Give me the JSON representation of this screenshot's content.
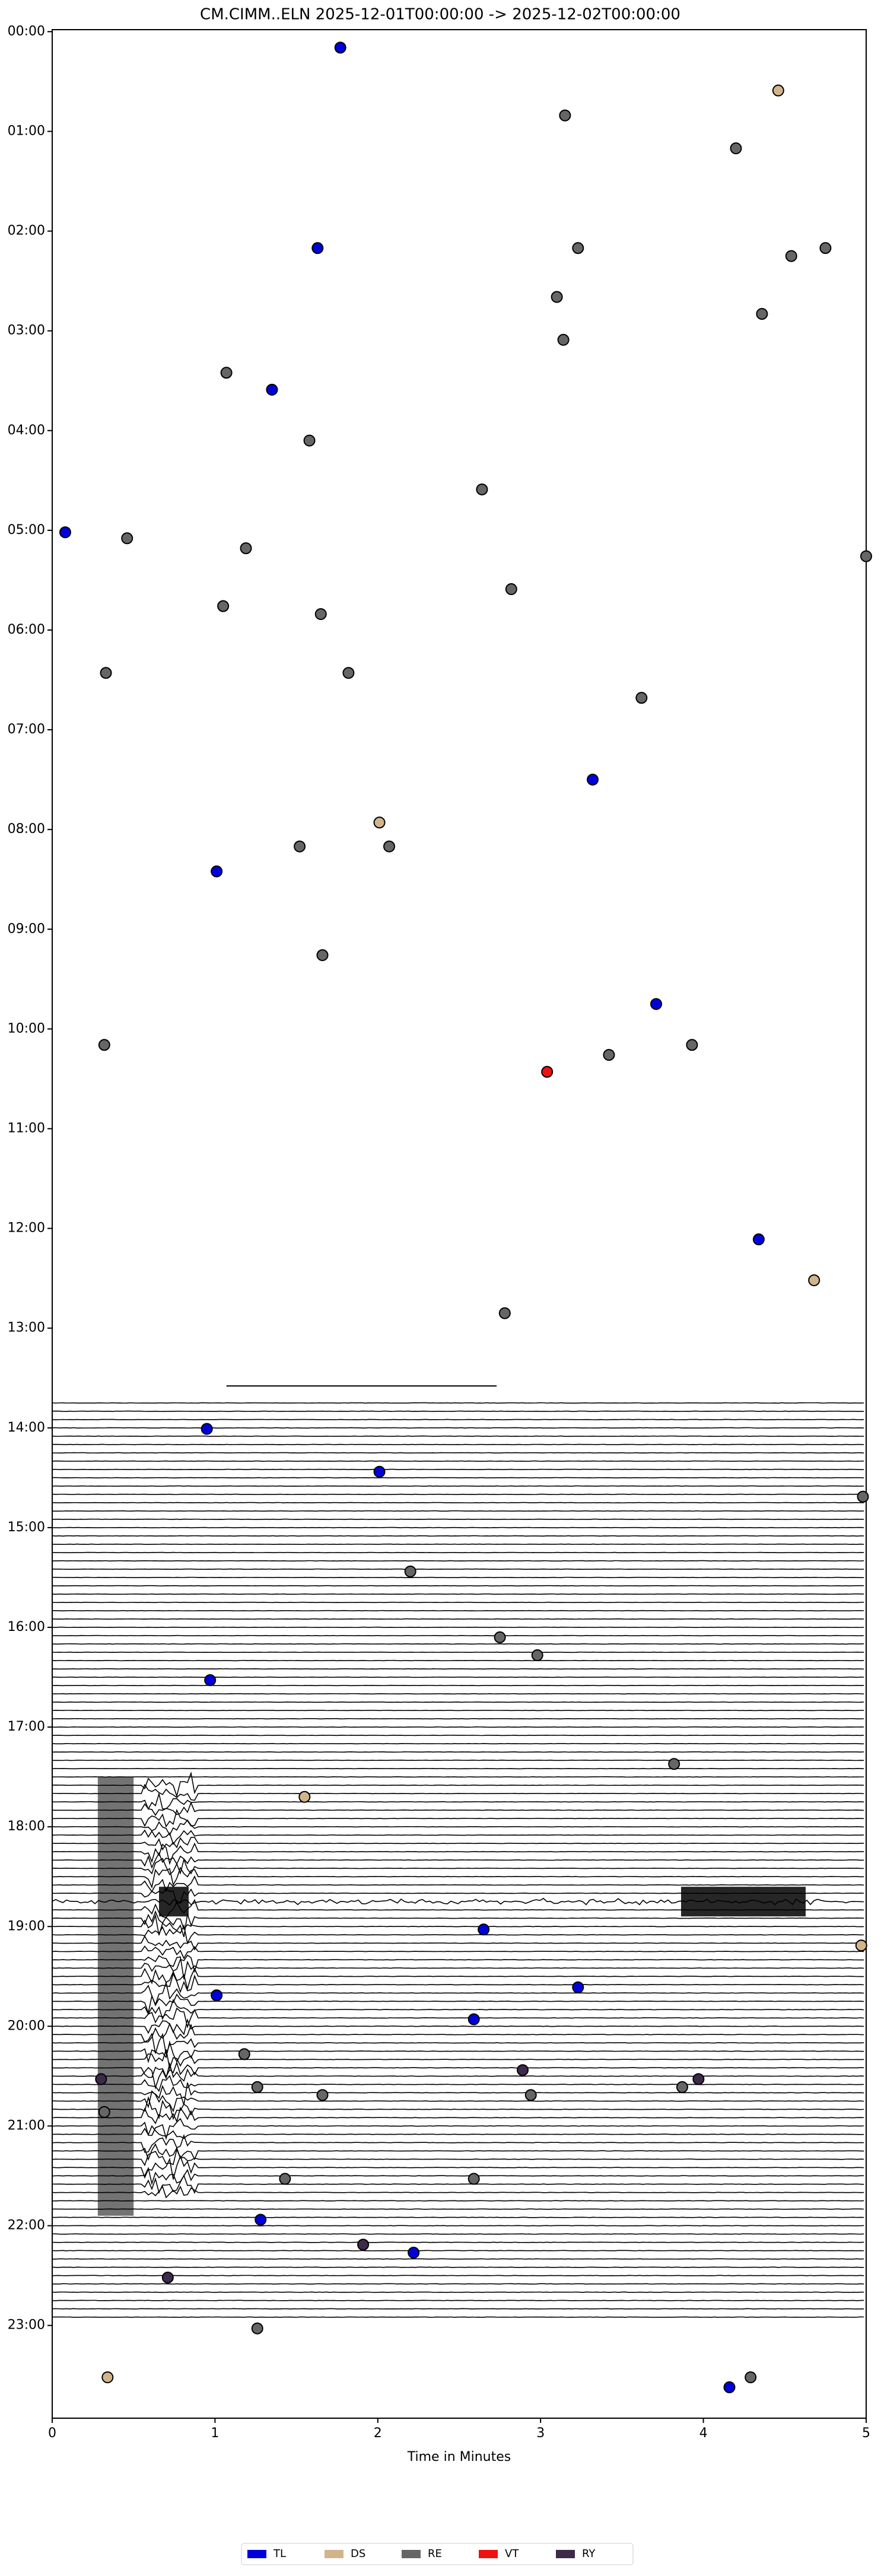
{
  "chart_data": {
    "type": "scatter",
    "title": "CM.CIMM..ELN  2025-12-01T00:00:00 -> 2025-12-02T00:00:00",
    "x_label": "Time in Minutes",
    "xlim": [
      0,
      5
    ],
    "xticks": [
      0,
      1,
      2,
      3,
      4,
      5
    ],
    "ylim": [
      23.93,
      -0.02
    ],
    "yticks": [
      {
        "value": 0,
        "label": "00:00"
      },
      {
        "value": 1,
        "label": "01:00"
      },
      {
        "value": 2,
        "label": "02:00"
      },
      {
        "value": 3,
        "label": "03:00"
      },
      {
        "value": 4,
        "label": "04:00"
      },
      {
        "value": 5,
        "label": "05:00"
      },
      {
        "value": 6,
        "label": "06:00"
      },
      {
        "value": 7,
        "label": "07:00"
      },
      {
        "value": 8,
        "label": "08:00"
      },
      {
        "value": 9,
        "label": "09:00"
      },
      {
        "value": 10,
        "label": "10:00"
      },
      {
        "value": 11,
        "label": "11:00"
      },
      {
        "value": 12,
        "label": "12:00"
      },
      {
        "value": 13,
        "label": "13:00"
      },
      {
        "value": 14,
        "label": "14:00"
      },
      {
        "value": 15,
        "label": "15:00"
      },
      {
        "value": 16,
        "label": "16:00"
      },
      {
        "value": 17,
        "label": "17:00"
      },
      {
        "value": 18,
        "label": "18:00"
      },
      {
        "value": 19,
        "label": "19:00"
      },
      {
        "value": 20,
        "label": "20:00"
      },
      {
        "value": 21,
        "label": "21:00"
      },
      {
        "value": 22,
        "label": "22:00"
      },
      {
        "value": 23,
        "label": "23:00"
      }
    ],
    "legend": "lower center",
    "series": [
      {
        "name": "TL",
        "color": "#0000dd",
        "x": [
          1.77,
          1.63,
          1.35,
          0.08,
          3.32,
          1.01,
          3.71,
          4.34,
          0.95,
          2.01,
          0.97,
          2.65,
          1.01,
          3.23,
          2.59,
          1.28,
          2.22,
          4.16
        ],
        "values": [
          0.16,
          2.17,
          3.59,
          5.02,
          7.5,
          8.42,
          9.75,
          12.11,
          14.01,
          14.44,
          16.53,
          19.03,
          19.69,
          19.61,
          19.93,
          21.94,
          22.27,
          23.62
        ]
      },
      {
        "name": "DS",
        "color": "#d2b48c",
        "x": [
          4.46,
          2.01,
          4.68,
          1.55,
          4.97,
          0.34
        ],
        "values": [
          0.59,
          7.93,
          12.52,
          17.7,
          19.19,
          23.52
        ]
      },
      {
        "name": "RE",
        "color": "#666666",
        "x": [
          3.15,
          4.2,
          3.23,
          4.54,
          4.75,
          3.1,
          4.36,
          3.14,
          1.07,
          1.58,
          2.64,
          0.46,
          1.19,
          5.0,
          2.82,
          1.05,
          1.65,
          0.33,
          1.82,
          3.62,
          1.52,
          2.07,
          1.66,
          0.32,
          3.93,
          3.42,
          2.78,
          4.98,
          2.2,
          2.75,
          2.98,
          3.82,
          1.18,
          1.26,
          1.66,
          2.94,
          3.87,
          0.32,
          1.43,
          2.59,
          1.26,
          4.29
        ],
        "values": [
          0.84,
          1.17,
          2.17,
          2.25,
          2.17,
          2.66,
          2.83,
          3.09,
          3.42,
          4.1,
          4.59,
          5.08,
          5.18,
          5.26,
          5.59,
          5.76,
          5.84,
          6.43,
          6.43,
          6.68,
          8.17,
          8.17,
          9.26,
          10.16,
          10.16,
          10.26,
          12.85,
          14.69,
          15.44,
          16.1,
          16.28,
          17.37,
          20.28,
          20.61,
          20.69,
          20.69,
          20.61,
          20.86,
          21.53,
          21.53,
          23.03,
          23.52
        ]
      },
      {
        "name": "VT",
        "color": "#ee1111",
        "x": [
          3.04
        ],
        "values": [
          10.43
        ]
      },
      {
        "name": "RY",
        "color": "#3d2a4a",
        "x": [
          0.3,
          2.89,
          3.97,
          1.91,
          0.71
        ],
        "values": [
          20.53,
          20.44,
          20.53,
          22.19,
          22.52
        ]
      }
    ]
  }
}
